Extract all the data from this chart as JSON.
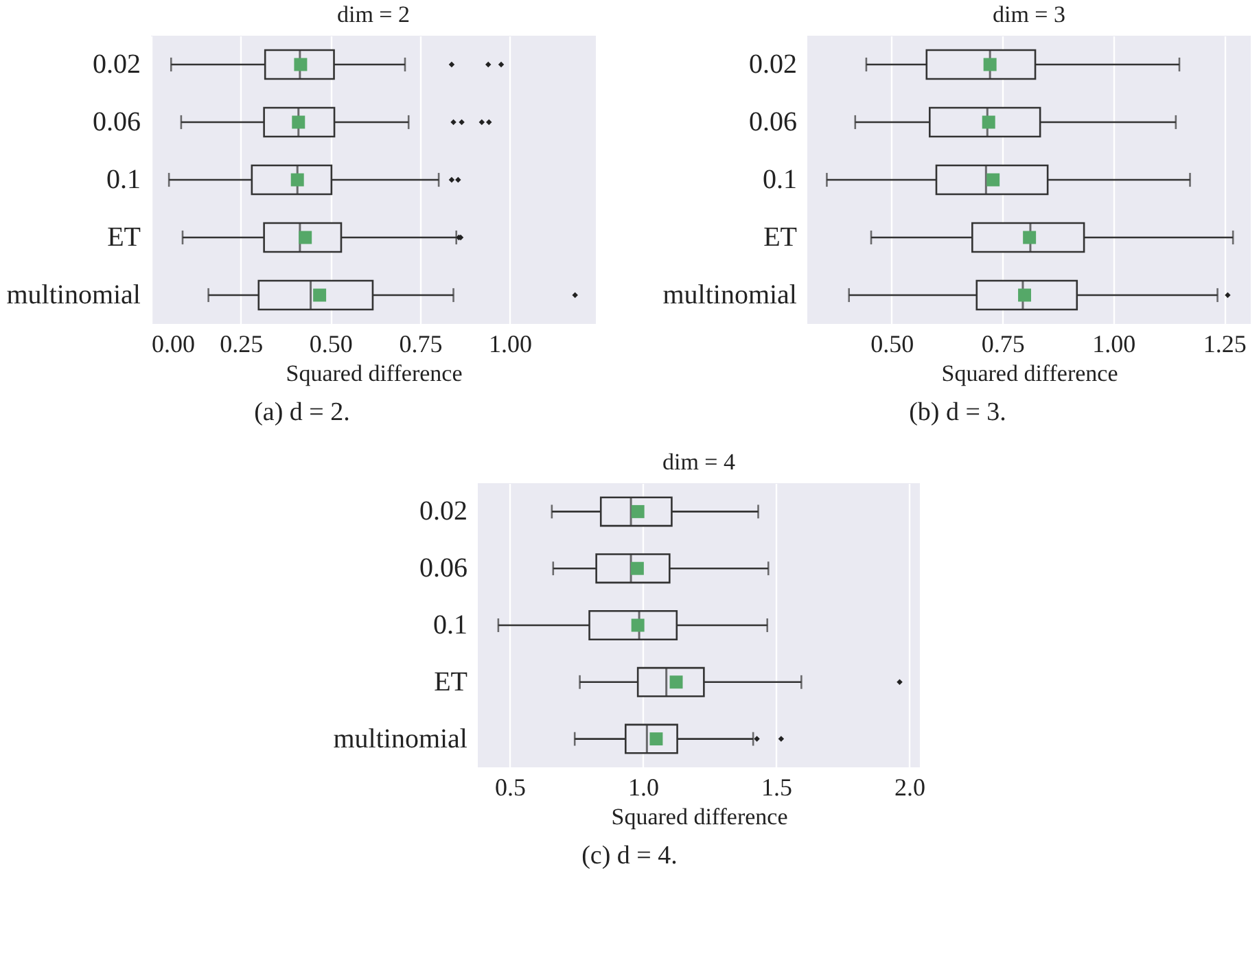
{
  "chart_data": [
    {
      "type": "box",
      "orientation": "horizontal",
      "title": "dim = 2",
      "xlabel": "Squared difference",
      "grid": "x",
      "annotations": [
        "(a) d = 2."
      ],
      "categories": [
        "0.02",
        "0.06",
        "0.1",
        "ET",
        "multinomial"
      ],
      "xlim": [
        0,
        1.24
      ],
      "xticks": [
        {
          "value": 0,
          "label": "0.00"
        },
        {
          "value": 0.25,
          "label": "0.25"
        },
        {
          "value": 0.5,
          "label": "0.50"
        },
        {
          "value": 0.75,
          "label": "0.75"
        },
        {
          "value": 1,
          "label": "1.00"
        }
      ],
      "boxes": [
        {
          "low": 0.056,
          "q1": 0.318,
          "median": 0.415,
          "q3": 0.51,
          "high": 0.708,
          "mean": 0.417,
          "outliers": [
            0.838,
            0.94,
            0.976
          ]
        },
        {
          "low": 0.084,
          "q1": 0.315,
          "median": 0.411,
          "q3": 0.511,
          "high": 0.718,
          "mean": 0.411,
          "outliers": [
            0.843,
            0.866,
            0.922,
            0.942
          ]
        },
        {
          "low": 0.05,
          "q1": 0.281,
          "median": 0.408,
          "q3": 0.503,
          "high": 0.802,
          "mean": 0.408,
          "outliers": [
            0.838,
            0.856
          ]
        },
        {
          "low": 0.088,
          "q1": 0.315,
          "median": 0.415,
          "q3": 0.53,
          "high": 0.851,
          "mean": 0.43,
          "outliers": [
            0.858,
            0.863
          ]
        },
        {
          "low": 0.16,
          "q1": 0.3,
          "median": 0.445,
          "q3": 0.618,
          "high": 0.843,
          "mean": 0.47,
          "outliers": [
            1.182
          ]
        }
      ]
    },
    {
      "type": "box",
      "orientation": "horizontal",
      "title": "dim = 3",
      "xlabel": "Squared difference",
      "grid": "x",
      "annotations": [
        "(b) d = 3."
      ],
      "categories": [
        "0.02",
        "0.06",
        "0.1",
        "ET",
        "multinomial"
      ],
      "xlim": [
        0.31,
        1.31
      ],
      "xticks": [
        {
          "value": 0.5,
          "label": "0.50"
        },
        {
          "value": 0.75,
          "label": "0.75"
        },
        {
          "value": 1,
          "label": "1.00"
        },
        {
          "value": 1.25,
          "label": "1.25"
        }
      ],
      "boxes": [
        {
          "low": 0.443,
          "q1": 0.579,
          "median": 0.722,
          "q3": 0.824,
          "high": 1.149,
          "mean": 0.722
        },
        {
          "low": 0.418,
          "q1": 0.586,
          "median": 0.716,
          "q3": 0.835,
          "high": 1.141,
          "mean": 0.719
        },
        {
          "low": 0.354,
          "q1": 0.601,
          "median": 0.713,
          "q3": 0.852,
          "high": 1.173,
          "mean": 0.729
        },
        {
          "low": 0.454,
          "q1": 0.682,
          "median": 0.813,
          "q3": 0.934,
          "high": 1.27,
          "mean": 0.811
        },
        {
          "low": 0.404,
          "q1": 0.692,
          "median": 0.796,
          "q3": 0.918,
          "high": 1.235,
          "mean": 0.8,
          "outliers": [
            1.258
          ]
        }
      ]
    },
    {
      "type": "box",
      "orientation": "horizontal",
      "title": "dim = 4",
      "xlabel": "Squared difference",
      "grid": "x",
      "annotations": [
        "(c) d = 4."
      ],
      "categories": [
        "0.02",
        "0.06",
        "0.1",
        "ET",
        "multinomial"
      ],
      "xlim": [
        0.38,
        2.04
      ],
      "xticks": [
        {
          "value": 0.5,
          "label": "0.5"
        },
        {
          "value": 1,
          "label": "1.0"
        },
        {
          "value": 1.5,
          "label": "1.5"
        },
        {
          "value": 2,
          "label": "2.0"
        }
      ],
      "boxes": [
        {
          "low": 0.658,
          "q1": 0.842,
          "median": 0.955,
          "q3": 1.108,
          "high": 1.433,
          "mean": 0.981
        },
        {
          "low": 0.663,
          "q1": 0.825,
          "median": 0.955,
          "q3": 1.1,
          "high": 1.471,
          "mean": 0.979
        },
        {
          "low": 0.457,
          "q1": 0.799,
          "median": 0.986,
          "q3": 1.127,
          "high": 1.467,
          "mean": 0.981
        },
        {
          "low": 0.763,
          "q1": 0.981,
          "median": 1.088,
          "q3": 1.229,
          "high": 1.595,
          "mean": 1.125,
          "outliers": [
            1.964
          ]
        },
        {
          "low": 0.744,
          "q1": 0.935,
          "median": 1.015,
          "q3": 1.129,
          "high": 1.414,
          "mean": 1.05,
          "outliers": [
            1.428,
            1.519
          ]
        }
      ]
    }
  ]
}
